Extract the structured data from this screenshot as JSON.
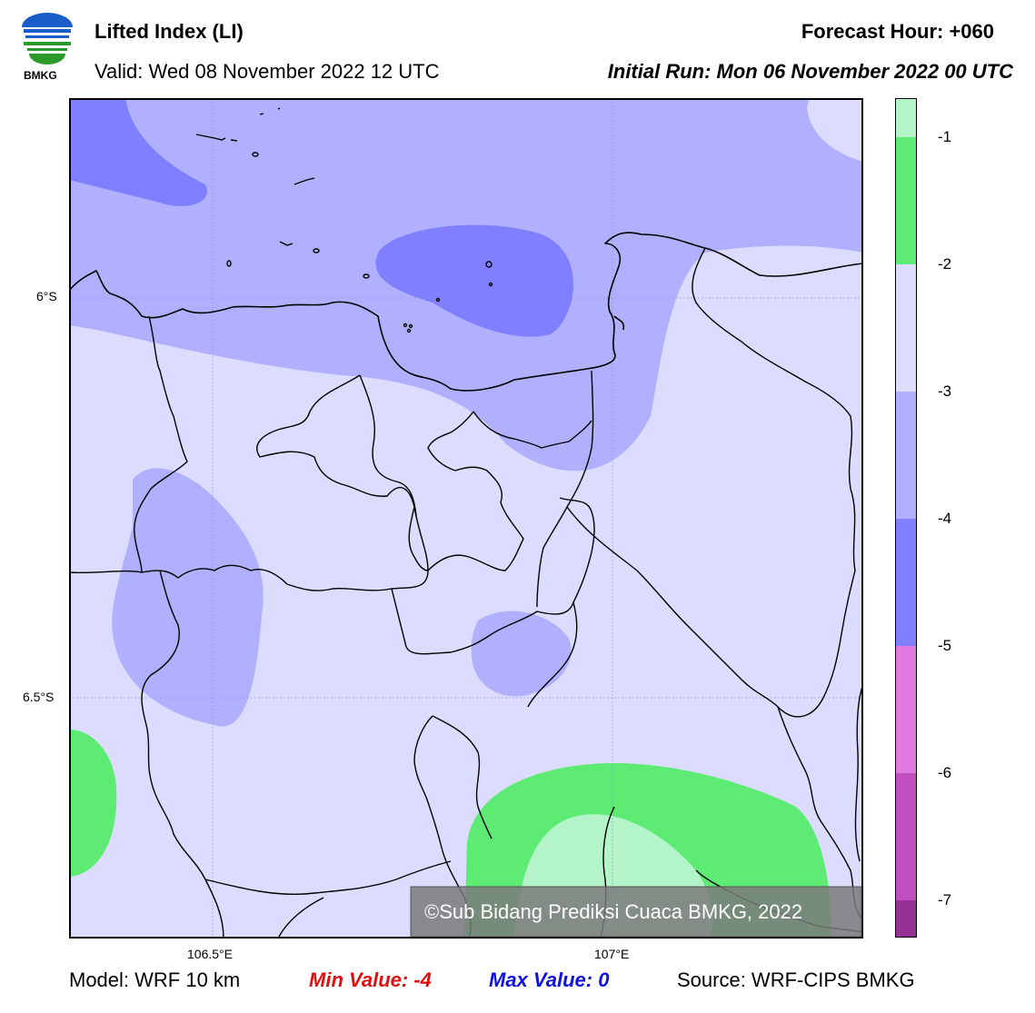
{
  "header": {
    "title": "Lifted Index (LI)",
    "valid": "Valid: Wed 08 November 2022 12 UTC",
    "forecast_hour": "Forecast Hour: +060",
    "initial_run": "Initial Run: Mon 06 November 2022 00 UTC"
  },
  "logo": {
    "text": "BMKG",
    "icon": "bmkg-logo-icon"
  },
  "map": {
    "lat_labels": [
      "6°S",
      "6.5°S"
    ],
    "lon_labels": [
      "106.5°E",
      "107°E"
    ],
    "watermark": "©Sub Bidang Prediksi Cuaca BMKG, 2022"
  },
  "colorbar": {
    "ticks": [
      "-1",
      "-2",
      "-3",
      "-4",
      "-5",
      "-6",
      "-7"
    ],
    "colors": [
      "#b3f5c9",
      "#5eeb73",
      "#dcdcff",
      "#b0b0ff",
      "#7f7fff",
      "#e07ae0",
      "#c050c0",
      "#963296"
    ]
  },
  "footer": {
    "model": "Model: WRF 10 km",
    "min_value": "Min Value: -4",
    "max_value": "Max Value: 0",
    "source": "Source: WRF-CIPS BMKG"
  }
}
